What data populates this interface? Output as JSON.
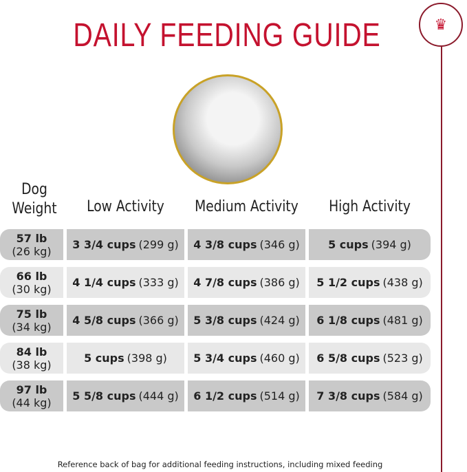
{
  "title": "DAILY FEEDING GUIDE",
  "logo_icon": "royal-canin-crown-icon",
  "colors": {
    "title": "#c4122f",
    "logo": "#8b1a2b",
    "dog_ring": "#c9a227",
    "row_dark": "#c9c9c9",
    "row_light": "#e8e8e8"
  },
  "headers": {
    "weight_line1": "Dog",
    "weight_line2": "Weight",
    "low": "Low Activity",
    "medium": "Medium Activity",
    "high": "High Activity"
  },
  "rows": [
    {
      "lb": "57 lb",
      "kg": "(26 kg)",
      "low": {
        "cups": "3 3/4 cups",
        "g": "(299 g)"
      },
      "medium": {
        "cups": "4 3/8 cups",
        "g": "(346 g)"
      },
      "high": {
        "cups": "5 cups",
        "g": "(394 g)"
      }
    },
    {
      "lb": "66 lb",
      "kg": "(30 kg)",
      "low": {
        "cups": "4 1/4 cups",
        "g": "(333 g)"
      },
      "medium": {
        "cups": "4 7/8 cups",
        "g": "(386 g)"
      },
      "high": {
        "cups": "5 1/2 cups",
        "g": "(438 g)"
      }
    },
    {
      "lb": "75 lb",
      "kg": "(34 kg)",
      "low": {
        "cups": "4 5/8 cups",
        "g": "(366 g)"
      },
      "medium": {
        "cups": "5 3/8 cups",
        "g": "(424 g)"
      },
      "high": {
        "cups": "6 1/8 cups",
        "g": "(481 g)"
      }
    },
    {
      "lb": "84 lb",
      "kg": "(38 kg)",
      "low": {
        "cups": "5 cups",
        "g": "(398 g)"
      },
      "medium": {
        "cups": "5 3/4 cups",
        "g": "(460 g)"
      },
      "high": {
        "cups": "6 5/8 cups",
        "g": "(523 g)"
      }
    },
    {
      "lb": "97 lb",
      "kg": "(44 kg)",
      "low": {
        "cups": "5 5/8 cups",
        "g": "(444 g)"
      },
      "medium": {
        "cups": "6 1/2 cups",
        "g": "(514 g)"
      },
      "high": {
        "cups": "7 3/8 cups",
        "g": "(584 g)"
      }
    }
  ],
  "footer": "Reference back of bag for additional feeding instructions, including mixed feeding"
}
